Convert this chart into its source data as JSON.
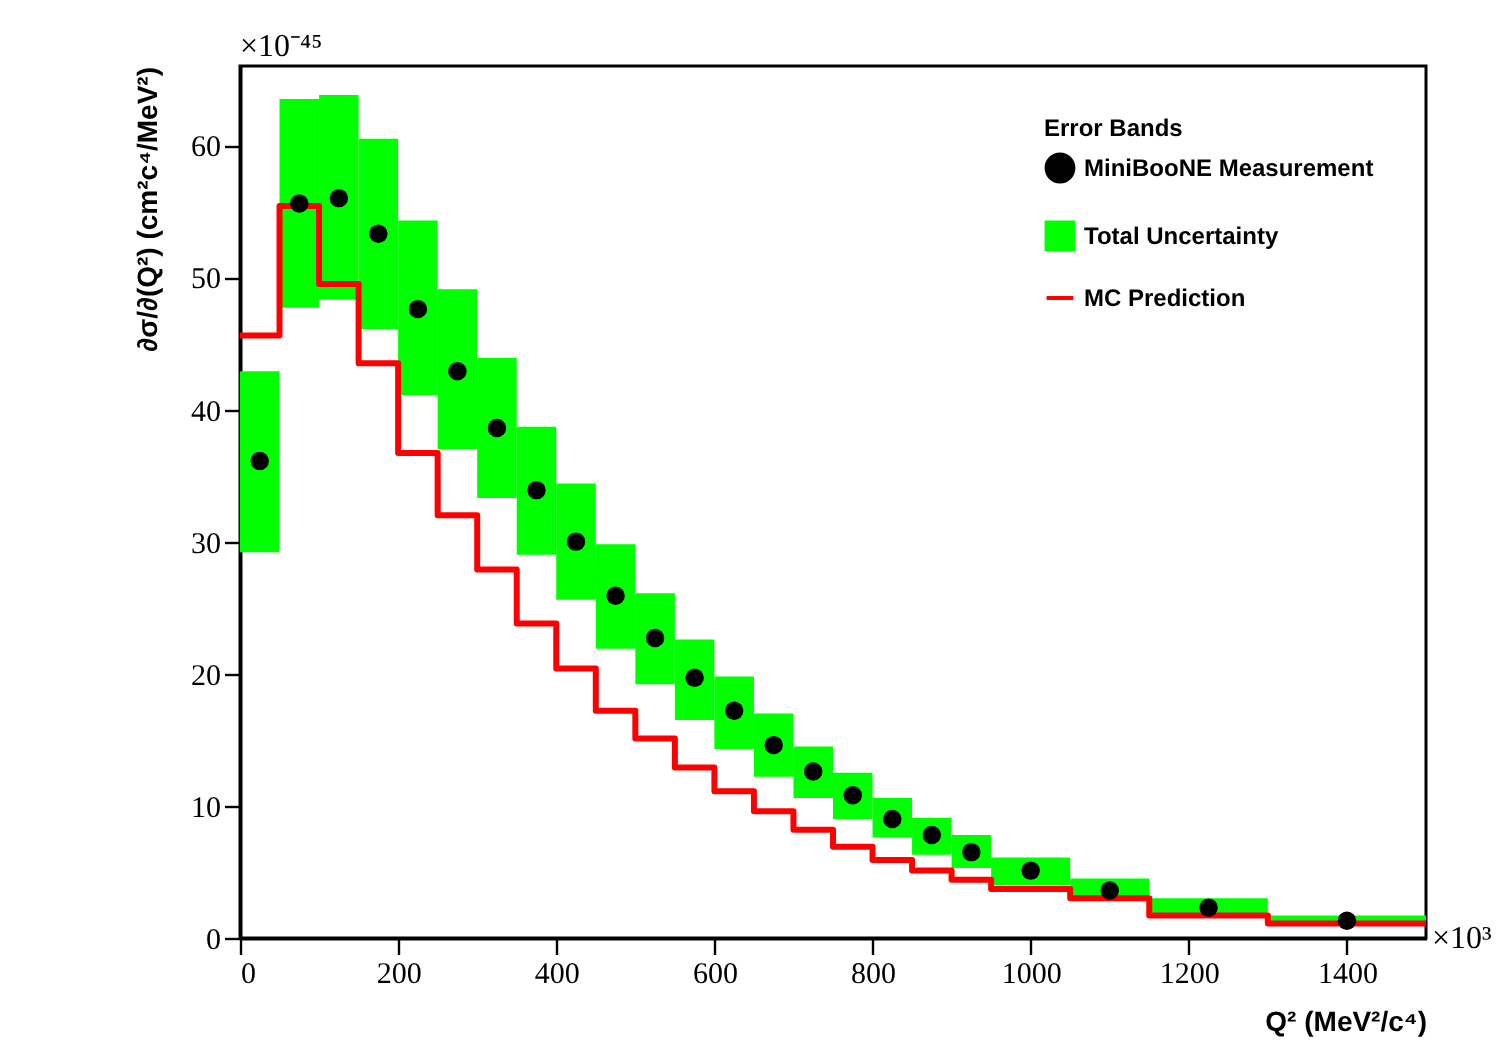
{
  "chart_data": {
    "type": "scatter",
    "xlabel": "Q² (MeV²/c⁴)",
    "ylabel": "∂σ/∂(Q²) (cm²c⁴/MeV²)",
    "legend_title": "Error Bands",
    "legend": "top right",
    "annotations": [
      "×10⁻⁴⁵",
      "×10³"
    ],
    "xlim": [
      0,
      1500
    ],
    "xticks": [
      0,
      200,
      400,
      600,
      800,
      1000,
      1200,
      1400
    ],
    "ylim": [
      0,
      66
    ],
    "yticks": [
      0,
      10,
      20,
      30,
      40,
      50,
      60
    ],
    "series": [
      {
        "name": "MiniBooNE Measurement",
        "marker": "circle",
        "color": "#000000",
        "x": [
          25,
          75,
          125,
          175,
          225,
          275,
          325,
          375,
          425,
          475,
          525,
          575,
          625,
          675,
          725,
          775,
          825,
          875,
          925,
          1000,
          1100,
          1225,
          1400
        ],
        "values": [
          36.1,
          55.6,
          56.0,
          53.3,
          47.6,
          42.9,
          38.6,
          33.9,
          30.0,
          25.9,
          22.7,
          19.7,
          17.2,
          14.6,
          12.6,
          10.8,
          9.0,
          7.8,
          6.5,
          5.1,
          3.6,
          2.3,
          1.3
        ]
      },
      {
        "name": "Total Uncertainty",
        "type": "histogram",
        "color": "#00ff00",
        "bins": [
          0,
          50,
          100,
          150,
          200,
          250,
          300,
          350,
          400,
          450,
          500,
          550,
          600,
          650,
          700,
          750,
          800,
          850,
          900,
          950,
          1050,
          1150,
          1300,
          1500
        ],
        "base": [
          29.2,
          47.7,
          48.3,
          46.1,
          41.1,
          37.0,
          33.3,
          29.0,
          25.6,
          21.9,
          19.2,
          16.5,
          14.3,
          12.2,
          10.6,
          9.0,
          7.6,
          6.3,
          5.3,
          4.0,
          2.9,
          1.7,
          0.9
        ],
        "values": [
          13.7,
          15.8,
          15.5,
          14.4,
          13.2,
          12.1,
          10.6,
          9.7,
          8.8,
          7.9,
          6.9,
          6.1,
          5.5,
          4.8,
          3.9,
          3.5,
          3.0,
          2.8,
          2.5,
          2.1,
          1.6,
          1.3,
          0.8
        ]
      },
      {
        "name": "MC Prediction",
        "type": "step",
        "color": "#ff0000",
        "x": [
          0,
          50,
          100,
          150,
          200,
          250,
          300,
          350,
          400,
          450,
          500,
          550,
          600,
          650,
          700,
          750,
          800,
          850,
          900,
          950,
          1050,
          1150,
          1300,
          1500
        ],
        "values": [
          45.6,
          55.4,
          49.5,
          43.5,
          36.7,
          32.0,
          27.9,
          23.8,
          20.4,
          17.2,
          15.1,
          12.9,
          11.1,
          9.6,
          8.2,
          6.9,
          5.9,
          5.1,
          4.4,
          3.7,
          3.0,
          1.7,
          1.1,
          1.1
        ]
      }
    ]
  }
}
